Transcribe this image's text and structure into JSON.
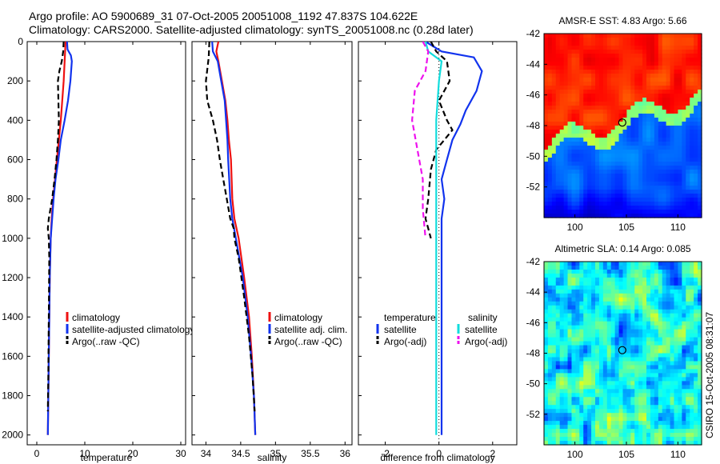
{
  "header": {
    "line1": "Argo profile: AO 5900689_31 07-Oct-2005 20051008_1192 47.837S 104.622E",
    "line2": "Climatology: CARS2000. Satellite-adjusted climatology: synTS_20051008.nc (0.28d later)"
  },
  "side_label": "CSIRO 15-Oct-2005 08:31:07",
  "colors": {
    "red": "#ee1111",
    "blue": "#1133ee",
    "black": "#000000",
    "cyan": "#11dddd",
    "magenta": "#ee11ee"
  },
  "chart_data": [
    {
      "id": "temperature",
      "type": "line",
      "xlabel": "temperature",
      "ylabel": "",
      "xlim": [
        -2,
        31
      ],
      "ylim": [
        0,
        2050
      ],
      "y_reversed": true,
      "xticks": [
        0,
        10,
        20,
        30
      ],
      "yticks": [
        0,
        200,
        400,
        600,
        800,
        1000,
        1200,
        1400,
        1600,
        1800,
        2000
      ],
      "legend": {
        "position": "lower-right",
        "entries": [
          "climatology",
          "satellite-adjusted climatology",
          "Argo(..raw -QC)"
        ]
      },
      "series": [
        {
          "name": "climatology",
          "color": "red",
          "dash": false,
          "points": [
            [
              6.0,
              0
            ],
            [
              5.9,
              50
            ],
            [
              5.8,
              100
            ],
            [
              5.6,
              200
            ],
            [
              5.3,
              300
            ],
            [
              5.0,
              400
            ],
            [
              4.6,
              500
            ],
            [
              4.2,
              600
            ],
            [
              3.8,
              700
            ],
            [
              3.4,
              800
            ],
            [
              3.1,
              900
            ],
            [
              2.9,
              1000
            ],
            [
              2.7,
              1200
            ],
            [
              2.6,
              1400
            ],
            [
              2.5,
              1600
            ],
            [
              2.4,
              1800
            ],
            [
              2.3,
              2000
            ]
          ]
        },
        {
          "name": "satellite-adjusted climatology",
          "color": "blue",
          "dash": false,
          "points": [
            [
              6.3,
              0
            ],
            [
              6.4,
              40
            ],
            [
              7.1,
              70
            ],
            [
              7.3,
              100
            ],
            [
              7.0,
              200
            ],
            [
              6.5,
              300
            ],
            [
              5.8,
              400
            ],
            [
              5.0,
              500
            ],
            [
              4.5,
              600
            ],
            [
              3.9,
              700
            ],
            [
              3.5,
              800
            ],
            [
              3.2,
              900
            ],
            [
              2.9,
              1000
            ],
            [
              2.7,
              1200
            ],
            [
              2.6,
              1400
            ],
            [
              2.5,
              1600
            ],
            [
              2.4,
              1800
            ],
            [
              2.3,
              2000
            ]
          ]
        },
        {
          "name": "Argo(..raw -QC)",
          "color": "black",
          "dash": true,
          "points": [
            [
              5.6,
              0
            ],
            [
              5.5,
              50
            ],
            [
              5.2,
              100
            ],
            [
              4.7,
              150
            ],
            [
              4.4,
              200
            ],
            [
              4.5,
              300
            ],
            [
              4.6,
              400
            ],
            [
              4.4,
              500
            ],
            [
              4.1,
              600
            ],
            [
              3.7,
              700
            ],
            [
              3.2,
              800
            ],
            [
              2.5,
              900
            ],
            [
              2.3,
              950
            ],
            [
              2.5,
              1000
            ],
            [
              2.6,
              1100
            ],
            [
              2.5,
              1400
            ],
            [
              2.4,
              1700
            ],
            [
              2.3,
              1880
            ]
          ]
        }
      ]
    },
    {
      "id": "salinity",
      "type": "line",
      "xlabel": "salinity",
      "ylabel": "",
      "xlim": [
        33.8,
        36.1
      ],
      "ylim": [
        0,
        2050
      ],
      "y_reversed": true,
      "xticks": [
        34,
        34.5,
        35,
        35.5,
        36
      ],
      "yticks": [],
      "legend": {
        "position": "lower-right",
        "entries": [
          "climatology",
          "satellite adj. clim.",
          "Argo(..raw -QC)"
        ]
      },
      "series": [
        {
          "name": "climatology",
          "color": "red",
          "dash": false,
          "points": [
            [
              34.18,
              0
            ],
            [
              34.15,
              50
            ],
            [
              34.18,
              100
            ],
            [
              34.23,
              200
            ],
            [
              34.28,
              300
            ],
            [
              34.31,
              400
            ],
            [
              34.33,
              500
            ],
            [
              34.36,
              600
            ],
            [
              34.38,
              800
            ],
            [
              34.41,
              900
            ],
            [
              34.47,
              1000
            ],
            [
              34.55,
              1200
            ],
            [
              34.62,
              1400
            ],
            [
              34.66,
              1600
            ],
            [
              34.69,
              1800
            ],
            [
              34.71,
              2000
            ]
          ]
        },
        {
          "name": "satellite adj. clim.",
          "color": "blue",
          "dash": false,
          "points": [
            [
              34.09,
              0
            ],
            [
              34.1,
              50
            ],
            [
              34.17,
              100
            ],
            [
              34.22,
              200
            ],
            [
              34.27,
              300
            ],
            [
              34.29,
              400
            ],
            [
              34.31,
              500
            ],
            [
              34.32,
              600
            ],
            [
              34.35,
              800
            ],
            [
              34.38,
              900
            ],
            [
              34.43,
              1000
            ],
            [
              34.53,
              1200
            ],
            [
              34.6,
              1400
            ],
            [
              34.65,
              1600
            ],
            [
              34.69,
              1800
            ],
            [
              34.71,
              2000
            ]
          ]
        },
        {
          "name": "Argo(..raw -QC)",
          "color": "black",
          "dash": true,
          "points": [
            [
              34.05,
              0
            ],
            [
              34.04,
              80
            ],
            [
              34.0,
              200
            ],
            [
              34.02,
              300
            ],
            [
              34.1,
              400
            ],
            [
              34.16,
              500
            ],
            [
              34.2,
              600
            ],
            [
              34.25,
              700
            ],
            [
              34.3,
              800
            ],
            [
              34.35,
              900
            ],
            [
              34.4,
              950
            ],
            [
              34.41,
              1000
            ],
            [
              34.47,
              1100
            ],
            [
              34.55,
              1300
            ],
            [
              34.62,
              1500
            ],
            [
              34.67,
              1700
            ],
            [
              34.7,
              1880
            ]
          ]
        }
      ]
    },
    {
      "id": "difference",
      "type": "line",
      "xlabel": "difference from climatology",
      "ylabel": "",
      "xlim": [
        -3.0,
        2.9
      ],
      "ylim": [
        0,
        2050
      ],
      "y_reversed": true,
      "xticks": [
        -2,
        0,
        2
      ],
      "yticks": [],
      "legend": {
        "position": "lower-center",
        "groups": [
          {
            "title": "temperature",
            "entries": [
              {
                "label": "satellite",
                "color": "blue",
                "dash": false
              },
              {
                "label": "Argo(-adj)",
                "color": "black",
                "dash": true
              }
            ]
          },
          {
            "title": "salinity",
            "entries": [
              {
                "label": "satellite",
                "color": "cyan",
                "dash": false
              },
              {
                "label": "Argo(-adj)",
                "color": "magenta",
                "dash": true
              }
            ]
          }
        ]
      },
      "series": [
        {
          "name": "temperature satellite",
          "color": "blue",
          "dash": false,
          "points": [
            [
              -0.5,
              0
            ],
            [
              0.1,
              50
            ],
            [
              1.3,
              80
            ],
            [
              1.6,
              150
            ],
            [
              1.4,
              250
            ],
            [
              1.0,
              350
            ],
            [
              0.8,
              420
            ],
            [
              0.5,
              500
            ],
            [
              0.3,
              600
            ],
            [
              0.1,
              700
            ],
            [
              0.2,
              800
            ],
            [
              0.1,
              900
            ],
            [
              0.1,
              1000
            ],
            [
              0.1,
              1200
            ],
            [
              0.1,
              1400
            ],
            [
              0.1,
              1600
            ],
            [
              0.1,
              1800
            ],
            [
              0.1,
              2000
            ]
          ]
        },
        {
          "name": "temperature Argo(-adj)",
          "color": "black",
          "dash": true,
          "points": [
            [
              -0.3,
              0
            ],
            [
              -0.1,
              50
            ],
            [
              0.3,
              100
            ],
            [
              0.4,
              200
            ],
            [
              0.0,
              300
            ],
            [
              0.3,
              400
            ],
            [
              0.5,
              450
            ],
            [
              -0.1,
              550
            ],
            [
              -0.3,
              650
            ],
            [
              -0.4,
              800
            ],
            [
              -0.5,
              900
            ],
            [
              -0.4,
              950
            ],
            [
              -0.3,
              1000
            ]
          ]
        },
        {
          "name": "salinity satellite",
          "color": "cyan",
          "dash": false,
          "points": [
            [
              -0.5,
              0
            ],
            [
              -0.4,
              50
            ],
            [
              0.1,
              100
            ],
            [
              0.0,
              200
            ],
            [
              -0.1,
              400
            ],
            [
              -0.1,
              600
            ],
            [
              -0.1,
              800
            ],
            [
              -0.1,
              1000
            ],
            [
              -0.1,
              1200
            ],
            [
              -0.1,
              1400
            ],
            [
              -0.1,
              1600
            ],
            [
              -0.1,
              1800
            ],
            [
              -0.1,
              2000
            ]
          ]
        },
        {
          "name": "salinity Argo(-adj)",
          "color": "magenta",
          "dash": true,
          "points": [
            [
              -0.6,
              0
            ],
            [
              -0.4,
              50
            ],
            [
              -0.5,
              150
            ],
            [
              -0.9,
              250
            ],
            [
              -1.0,
              400
            ],
            [
              -0.8,
              550
            ],
            [
              -0.6,
              700
            ],
            [
              -0.6,
              850
            ],
            [
              -0.5,
              1000
            ]
          ]
        }
      ],
      "reference_line": {
        "x": 0,
        "dotted": true
      }
    },
    {
      "id": "sst_map",
      "type": "heatmap",
      "title": "AMSR-E SST: 4.83 Argo: 5.66",
      "xlim": [
        97,
        112.3
      ],
      "ylim": [
        -54,
        -42
      ],
      "xticks": [
        100,
        105,
        110
      ],
      "yticks": [
        -42,
        -44,
        -46,
        -48,
        -50,
        -52
      ],
      "marker": [
        104.6,
        -47.8
      ]
    },
    {
      "id": "sla_map",
      "type": "heatmap",
      "title": "Altimetric SLA: 0.14 Argo: 0.085",
      "xlim": [
        97,
        112.3
      ],
      "ylim": [
        -54,
        -42
      ],
      "xticks": [
        100,
        105,
        110
      ],
      "yticks": [
        -42,
        -44,
        -46,
        -48,
        -50,
        -52
      ],
      "marker": [
        104.6,
        -47.8
      ]
    }
  ]
}
